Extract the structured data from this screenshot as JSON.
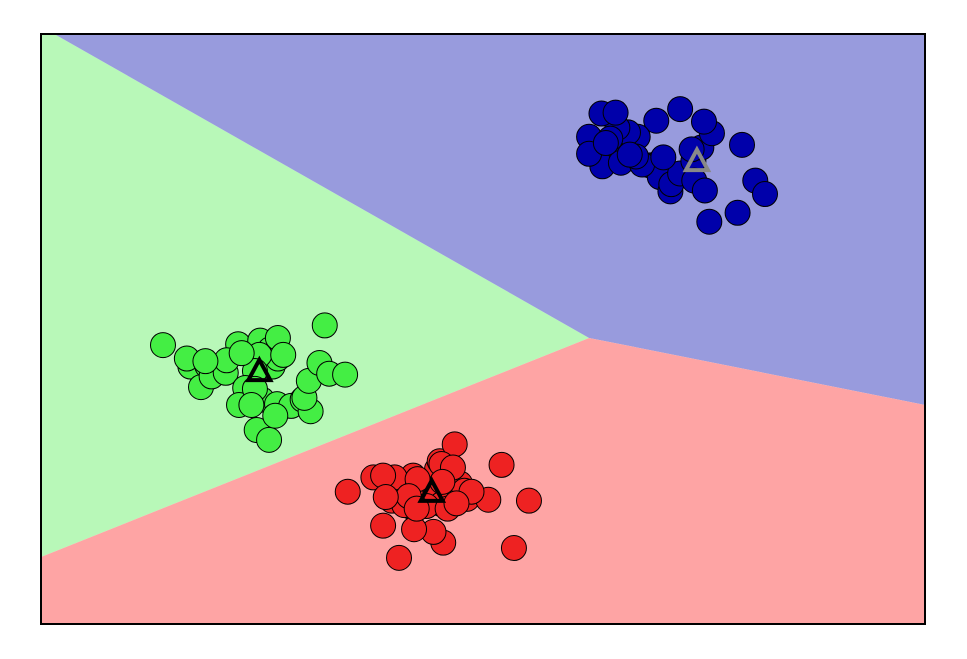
{
  "chart_data": {
    "type": "scatter",
    "title": "",
    "xlabel": "",
    "ylabel": "",
    "xlim": [
      0,
      100
    ],
    "ylim": [
      0,
      66
    ],
    "grid": false,
    "ticks": false,
    "legend": "none",
    "regions": [
      {
        "name": "cluster-0",
        "color": "#b8f8b8",
        "polygon": [
          [
            0,
            66
          ],
          [
            1.5,
            66
          ],
          [
            62,
            32
          ],
          [
            0,
            7.5
          ]
        ]
      },
      {
        "name": "cluster-1",
        "color": "#989bdd",
        "polygon": [
          [
            1.5,
            66
          ],
          [
            100,
            66
          ],
          [
            100,
            24.5
          ],
          [
            62,
            32
          ]
        ]
      },
      {
        "name": "cluster-2",
        "color": "#fea4a4",
        "polygon": [
          [
            0,
            7.5
          ],
          [
            62,
            32
          ],
          [
            100,
            24.5
          ],
          [
            100,
            0
          ],
          [
            0,
            0
          ]
        ]
      }
    ],
    "series": [
      {
        "color": "#44ee44",
        "points": [
          [
            13.8,
            31.2
          ],
          [
            16.9,
            28.8
          ],
          [
            18.1,
            26.5
          ],
          [
            18.8,
            28.9
          ],
          [
            19.3,
            27.7
          ],
          [
            16.5,
            29.7
          ],
          [
            22.3,
            31.3
          ],
          [
            24.8,
            31.7
          ],
          [
            25.9,
            30.7
          ],
          [
            26.2,
            28.8
          ],
          [
            26.8,
            29.7
          ],
          [
            24.7,
            30.1
          ],
          [
            24.2,
            28.3
          ],
          [
            20.9,
            28.1
          ],
          [
            23.1,
            26.4
          ],
          [
            22.4,
            24.5
          ],
          [
            25.0,
            25.1
          ],
          [
            24.4,
            21.7
          ],
          [
            26.7,
            24.6
          ],
          [
            25.8,
            20.6
          ],
          [
            28.3,
            24.4
          ],
          [
            29.6,
            25.1
          ],
          [
            30.5,
            23.8
          ],
          [
            29.8,
            25.3
          ],
          [
            30.3,
            27.2
          ],
          [
            31.5,
            29.2
          ],
          [
            32.6,
            28.0
          ],
          [
            34.4,
            27.9
          ],
          [
            32.1,
            33.4
          ],
          [
            21.0,
            29.5
          ],
          [
            22.7,
            30.3
          ],
          [
            26.8,
            32.0
          ],
          [
            27.4,
            30.1
          ],
          [
            24.2,
            26.3
          ],
          [
            18.6,
            29.4
          ],
          [
            26.5,
            23.3
          ],
          [
            23.8,
            24.5
          ]
        ]
      },
      {
        "color": "#0000aa",
        "points": [
          [
            62.0,
            54.5
          ],
          [
            64.0,
            53.5
          ],
          [
            65.8,
            53.3
          ],
          [
            66.9,
            52.1
          ],
          [
            68.9,
            51.3
          ],
          [
            70.0,
            51.7
          ],
          [
            70.0,
            50.0
          ],
          [
            71.2,
            48.4
          ],
          [
            71.3,
            49.2
          ],
          [
            72.3,
            50.4
          ],
          [
            73.8,
            51.8
          ],
          [
            74.7,
            53.3
          ],
          [
            75.9,
            54.9
          ],
          [
            75.0,
            56.2
          ],
          [
            73.6,
            53.1
          ],
          [
            73.9,
            49.6
          ],
          [
            75.1,
            48.5
          ],
          [
            79.3,
            53.6
          ],
          [
            80.8,
            49.6
          ],
          [
            81.9,
            48.1
          ],
          [
            78.8,
            46.0
          ],
          [
            75.6,
            45.0
          ],
          [
            72.3,
            57.6
          ],
          [
            69.6,
            56.3
          ],
          [
            67.5,
            54.5
          ],
          [
            66.4,
            55.0
          ],
          [
            65.2,
            55.5
          ],
          [
            64.4,
            54.3
          ],
          [
            63.4,
            57.1
          ],
          [
            65.0,
            57.2
          ],
          [
            63.5,
            51.2
          ],
          [
            65.6,
            51.6
          ],
          [
            68.0,
            51.4
          ],
          [
            70.4,
            52.2
          ],
          [
            67.3,
            52.3
          ],
          [
            62.0,
            52.6
          ],
          [
            63.9,
            53.8
          ],
          [
            66.6,
            52.5
          ]
        ]
      },
      {
        "color": "#ee2222",
        "points": [
          [
            34.7,
            14.8
          ],
          [
            37.6,
            16.4
          ],
          [
            39.8,
            15.1
          ],
          [
            39.7,
            13.8
          ],
          [
            41.9,
            13.1
          ],
          [
            43.3,
            13.5
          ],
          [
            44.6,
            14.5
          ],
          [
            45.3,
            13.4
          ],
          [
            46.1,
            16.6
          ],
          [
            47.4,
            15.7
          ],
          [
            48.2,
            14.0
          ],
          [
            50.6,
            13.9
          ],
          [
            52.1,
            17.8
          ],
          [
            55.2,
            13.8
          ],
          [
            53.5,
            8.5
          ],
          [
            45.5,
            9.1
          ],
          [
            44.4,
            10.3
          ],
          [
            42.2,
            10.6
          ],
          [
            38.7,
            11.0
          ],
          [
            40.5,
            7.4
          ],
          [
            44.8,
            17.3
          ],
          [
            45.1,
            18.2
          ],
          [
            46.8,
            20.1
          ],
          [
            45.3,
            17.9
          ],
          [
            42.1,
            16.6
          ],
          [
            46.6,
            17.5
          ],
          [
            40.0,
            16.4
          ],
          [
            41.1,
            13.3
          ],
          [
            43.6,
            13.2
          ],
          [
            42.6,
            16.2
          ],
          [
            47.9,
            14.9
          ],
          [
            48.7,
            14.8
          ],
          [
            46.0,
            12.9
          ],
          [
            41.6,
            14.3
          ],
          [
            38.7,
            16.6
          ],
          [
            39.0,
            14.2
          ],
          [
            45.4,
            15.9
          ],
          [
            47.0,
            13.5
          ],
          [
            42.5,
            12.9
          ]
        ]
      }
    ],
    "centers": [
      {
        "x": 24.7,
        "y": 28.2,
        "stroke": "#000000"
      },
      {
        "x": 74.2,
        "y": 51.7,
        "stroke": "#888888"
      },
      {
        "x": 44.2,
        "y": 14.7,
        "stroke": "#000000"
      }
    ]
  }
}
